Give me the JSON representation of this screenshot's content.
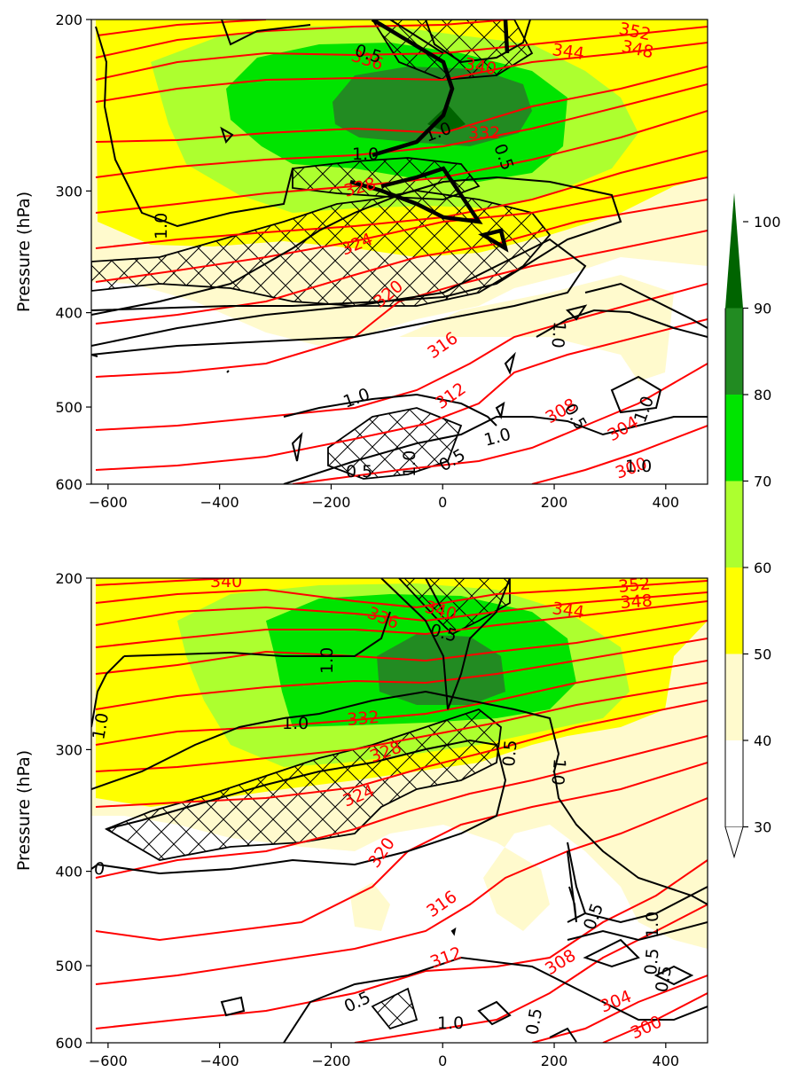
{
  "chart_data": [
    {
      "type": "contour",
      "panel": "top",
      "ylabel": "Pressure (hPa)",
      "xlim": [
        -630,
        475
      ],
      "ylim": [
        600,
        200
      ],
      "yscale": "log",
      "x_ticks": [
        "−600",
        "−400",
        "−200",
        "0",
        "200",
        "400"
      ],
      "x_tick_values": [
        -600,
        -400,
        -200,
        0,
        200,
        400
      ],
      "y_ticks": [
        "200",
        "300",
        "400",
        "500",
        "600"
      ],
      "y_tick_values": [
        200,
        300,
        400,
        500,
        600
      ],
      "theta_contour_labels": [
        "352",
        "348",
        "344",
        "340",
        "336",
        "332",
        "328",
        "324",
        "320",
        "316",
        "312",
        "308",
        "304",
        "300"
      ],
      "black_contour_labels": [
        "0.5",
        "1.0",
        "1.0",
        "1.0",
        "0.5",
        "1.0",
        "0.5",
        "0.5",
        "1.0",
        "1.0",
        "0.5",
        "1.0",
        "1.0",
        "1.0"
      ],
      "filled_levels": [
        30,
        40,
        50,
        60,
        70,
        80,
        90,
        100
      ]
    },
    {
      "type": "contour",
      "panel": "bottom",
      "ylabel": "Pressure (hPa)",
      "xlim": [
        -630,
        475
      ],
      "ylim": [
        600,
        200
      ],
      "yscale": "log",
      "x_ticks": [
        "−600",
        "−400",
        "−200",
        "0",
        "200",
        "400"
      ],
      "x_tick_values": [
        -600,
        -400,
        -200,
        0,
        200,
        400
      ],
      "y_ticks": [
        "200",
        "300",
        "400",
        "500",
        "600"
      ],
      "y_tick_values": [
        200,
        300,
        400,
        500,
        600
      ],
      "theta_contour_labels": [
        "340",
        "340",
        "336",
        "352",
        "348",
        "344",
        "332",
        "328",
        "324",
        "320",
        "316",
        "312",
        "308",
        "304",
        "300"
      ],
      "black_contour_labels": [
        "1.0",
        "1.0",
        "1.0",
        "0.5",
        "0.5",
        "1.0",
        "0",
        "0.5",
        "1.0",
        "0.5",
        "1.0",
        "0.5",
        "0.5",
        "0.5"
      ],
      "filled_levels": [
        30,
        40,
        50,
        60,
        70,
        80,
        90,
        100
      ]
    }
  ],
  "colorbar": {
    "ticks": [
      "30",
      "40",
      "50",
      "60",
      "70",
      "80",
      "90",
      "100"
    ],
    "colors": [
      "#ffffff",
      "#fffacd",
      "#ffff00",
      "#adff2f",
      "#00e400",
      "#228b22",
      "#006400"
    ],
    "extend": "both"
  }
}
